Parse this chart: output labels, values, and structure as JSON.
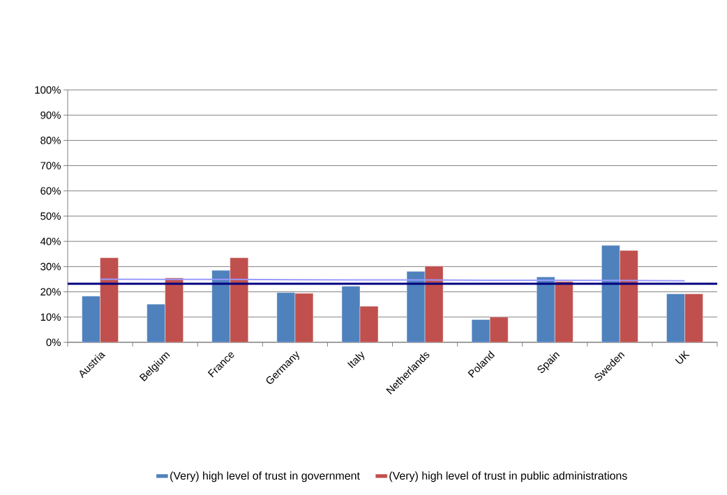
{
  "chart_data": {
    "type": "bar",
    "categories": [
      "Austria",
      "Belgium",
      "France",
      "Germany",
      "Italy",
      "Netherlands",
      "Poland",
      "Spain",
      "Sweden",
      "UK"
    ],
    "series": [
      {
        "name": "(Very) high level of trust in government",
        "color": "#4f81bd",
        "values": [
          18.3,
          15.1,
          28.5,
          19.7,
          22.2,
          28.1,
          9.0,
          25.9,
          38.4,
          19.2
        ]
      },
      {
        "name": "(Very) high level of trust in public administrations",
        "color": "#c0504d",
        "values": [
          33.5,
          25.5,
          33.5,
          19.4,
          14.3,
          30.2,
          10.0,
          24.1,
          36.4,
          19.2
        ]
      },
      {
        "type": "line",
        "color": "#9999ff",
        "values": [
          25.0,
          24.9,
          24.9,
          24.8,
          24.7,
          24.7,
          24.6,
          24.6,
          24.5,
          24.4
        ]
      }
    ],
    "ylim": [
      0,
      100
    ],
    "yticks": [
      {
        "value": 0,
        "label": "0%"
      },
      {
        "value": 10,
        "label": "10%"
      },
      {
        "value": 20,
        "label": "20%"
      },
      {
        "value": 30,
        "label": "30%"
      },
      {
        "value": 40,
        "label": "40%"
      },
      {
        "value": 50,
        "label": "50%"
      },
      {
        "value": 60,
        "label": "60%"
      },
      {
        "value": 70,
        "label": "70%"
      },
      {
        "value": 80,
        "label": "80%"
      },
      {
        "value": 90,
        "label": "90%"
      },
      {
        "value": 100,
        "label": "100%"
      }
    ],
    "ref_lines": [
      {
        "axis": "y",
        "value": 23.2,
        "color": "#000080"
      }
    ],
    "grid": "y",
    "legend": "bottom"
  }
}
